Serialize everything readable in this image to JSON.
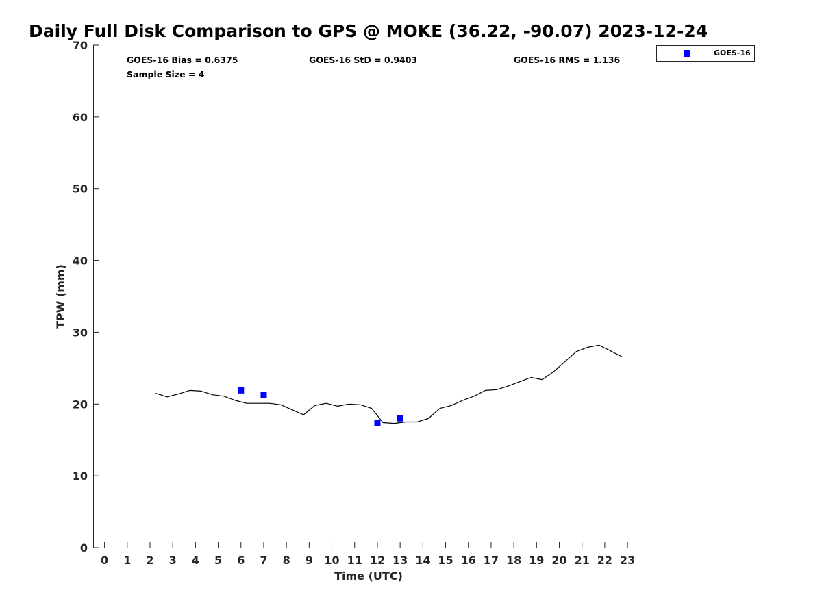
{
  "chart_data": {
    "type": "line",
    "title": "Daily Full Disk Comparison to GPS @ MOKE (36.22, -90.07) 2023-12-24",
    "xlabel": "Time (UTC)",
    "ylabel": "TPW (mm)",
    "xlim": [
      -0.5,
      23.75
    ],
    "ylim": [
      0,
      70
    ],
    "x_ticks": [
      "0",
      "1",
      "2",
      "3",
      "4",
      "5",
      "6",
      "7",
      "8",
      "9",
      "10",
      "11",
      "12",
      "13",
      "14",
      "15",
      "16",
      "17",
      "18",
      "19",
      "20",
      "21",
      "22",
      "23"
    ],
    "y_ticks": [
      "0",
      "10",
      "20",
      "30",
      "40",
      "50",
      "60",
      "70"
    ],
    "grid": false,
    "legend_position": "top-right",
    "stats": {
      "bias": "GOES-16 Bias = 0.6375",
      "std": "GOES-16 StD = 0.9403",
      "rms": "GOES-16 RMS = 1.136",
      "sample": "Sample Size = 4"
    },
    "series": [
      {
        "kind": "line",
        "color": "#000000",
        "x": [
          2.25,
          2.75,
          3.25,
          3.75,
          4.25,
          4.75,
          5.25,
          5.75,
          6.25,
          6.75,
          7.25,
          7.75,
          8.25,
          8.75,
          9.25,
          9.75,
          10.25,
          10.75,
          11.25,
          11.75,
          12.25,
          12.75,
          13.25,
          13.75,
          14.25,
          14.75,
          15.25,
          15.75,
          16.25,
          16.75,
          17.25,
          17.75,
          18.25,
          18.75,
          19.25,
          19.75,
          20.25,
          20.75,
          21.25,
          21.75,
          22.25,
          22.75
        ],
        "y": [
          21.5,
          21.0,
          21.4,
          21.9,
          21.8,
          21.3,
          21.1,
          20.5,
          20.1,
          20.1,
          20.1,
          19.9,
          19.2,
          18.5,
          19.8,
          20.1,
          19.7,
          20.0,
          19.9,
          19.4,
          17.4,
          17.3,
          17.5,
          17.5,
          18.0,
          19.4,
          19.8,
          20.5,
          21.1,
          21.9,
          22.0,
          22.5,
          23.1,
          23.7,
          23.4,
          24.5,
          25.9,
          27.3,
          27.9,
          28.2,
          27.4,
          26.6
        ]
      },
      {
        "name": "GOES-16",
        "kind": "scatter",
        "color": "#0000ff",
        "x": [
          6.0,
          7.0,
          12.0,
          13.0
        ],
        "y": [
          21.9,
          21.3,
          17.4,
          18.0
        ]
      }
    ]
  }
}
